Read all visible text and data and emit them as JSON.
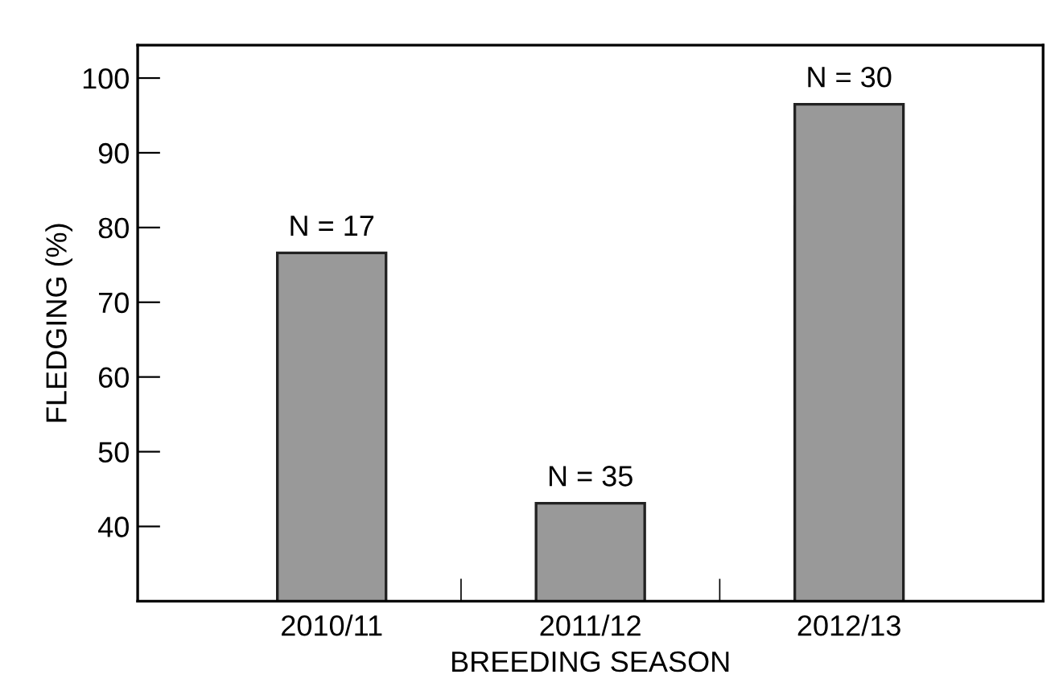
{
  "chart_data": {
    "type": "bar",
    "xlabel": "BREEDING SEASON",
    "ylabel": "FLEDGING (%)",
    "categories": [
      "2010/11",
      "2011/12",
      "2012/13"
    ],
    "values": [
      76.6,
      43.1,
      96.5
    ],
    "color": "#999999",
    "ylim": [
      30,
      104.4
    ],
    "yticks": [
      40,
      50,
      60,
      70,
      80,
      90,
      100
    ],
    "grid": false,
    "annotations": [
      {
        "text": "N = 17",
        "x": "2010/11",
        "y": 76.6
      },
      {
        "text": "N = 35",
        "x": "2011/12",
        "y": 43.1
      },
      {
        "text": "N = 30",
        "x": "2012/13",
        "y": 96.5
      }
    ]
  }
}
